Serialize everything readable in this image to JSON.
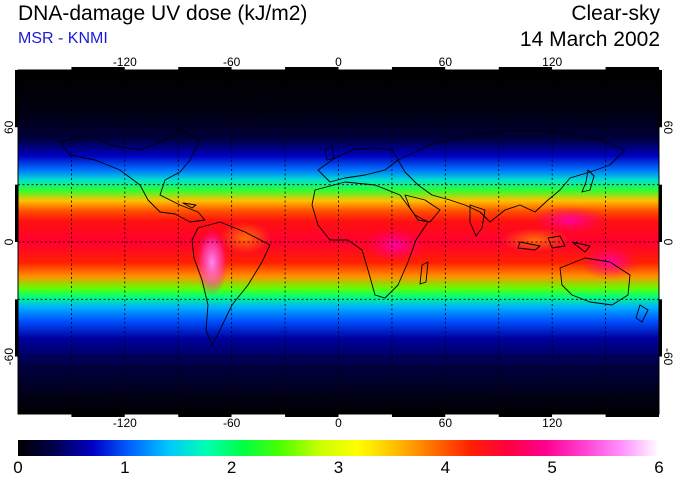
{
  "header": {
    "title": "DNA-damage UV dose (kJ/m2)",
    "source": "MSR - KNMI",
    "product": "Clear-sky",
    "date": "14 March 2002"
  },
  "map": {
    "lon_ticks": [
      "-120",
      "-60",
      "0",
      "60",
      "120"
    ],
    "lat_ticks": [
      "60",
      "0",
      "-60"
    ],
    "grid_lons": [
      -150,
      -120,
      -90,
      -60,
      -30,
      0,
      30,
      60,
      90,
      120,
      150
    ],
    "grid_lats": [
      -60,
      -30,
      0,
      30,
      60
    ],
    "grid": true,
    "lon_range": [
      -180,
      180
    ],
    "lat_range": [
      -90,
      90
    ]
  },
  "colorbar": {
    "ticks": [
      "0",
      "1",
      "2",
      "3",
      "4",
      "5",
      "6"
    ],
    "range": [
      0,
      6
    ],
    "colors": [
      "#000000",
      "#000050",
      "#0000c8",
      "#0064ff",
      "#00c8ff",
      "#00ffb0",
      "#00ff40",
      "#50ff00",
      "#c8ff00",
      "#ffff00",
      "#ffc000",
      "#ff7000",
      "#ff2000",
      "#ff0040",
      "#ff0090",
      "#ff40d0",
      "#ff90ff",
      "#ffffff"
    ]
  }
}
